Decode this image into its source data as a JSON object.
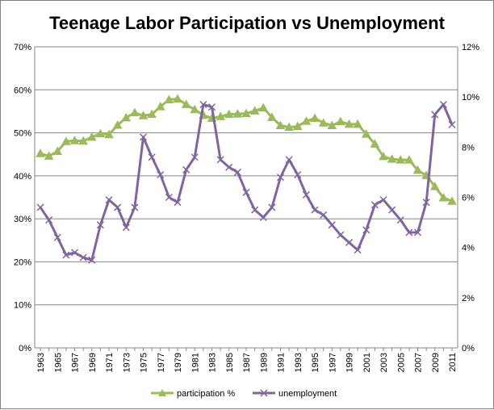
{
  "chart_data": {
    "type": "line",
    "title": "Teenage Labor Participation vs Unemployment",
    "xlabel": "",
    "ylabel": "",
    "x": [
      1963,
      1964,
      1965,
      1966,
      1967,
      1968,
      1969,
      1970,
      1971,
      1972,
      1973,
      1974,
      1975,
      1976,
      1977,
      1978,
      1979,
      1980,
      1981,
      1982,
      1983,
      1984,
      1985,
      1986,
      1987,
      1988,
      1989,
      1990,
      1991,
      1992,
      1993,
      1994,
      1995,
      1996,
      1997,
      1998,
      1999,
      2000,
      2001,
      2002,
      2003,
      2004,
      2005,
      2006,
      2007,
      2008,
      2009,
      2010,
      2011
    ],
    "x_tick_labels": [
      "1963",
      "1965",
      "1967",
      "1969",
      "1971",
      "1973",
      "1975",
      "1977",
      "1979",
      "1981",
      "1983",
      "1985",
      "1987",
      "1989",
      "1991",
      "1993",
      "1995",
      "1997",
      "1999",
      "2001",
      "2003",
      "2005",
      "2007",
      "2009",
      "2011"
    ],
    "ylim_left": [
      0,
      70
    ],
    "y_left_ticks": [
      "0%",
      "10%",
      "20%",
      "30%",
      "40%",
      "50%",
      "60%",
      "70%"
    ],
    "ylim_right": [
      0,
      12
    ],
    "y_right_ticks": [
      "0%",
      "2%",
      "4%",
      "6%",
      "8%",
      "10%",
      "12%"
    ],
    "grid": true,
    "legend_position": "bottom",
    "series": [
      {
        "name": "participation %",
        "axis": "left",
        "color": "#9bbb59",
        "marker": "triangle",
        "values": [
          45.2,
          44.6,
          45.7,
          48.0,
          48.2,
          48.1,
          49.0,
          49.8,
          49.6,
          51.8,
          53.5,
          54.7,
          54.0,
          54.3,
          56.1,
          57.7,
          57.9,
          56.6,
          55.4,
          54.1,
          53.4,
          53.8,
          54.3,
          54.4,
          54.5,
          55.1,
          55.8,
          53.6,
          51.7,
          51.3,
          51.5,
          52.7,
          53.4,
          52.3,
          51.7,
          52.6,
          52.0,
          52.0,
          49.7,
          47.4,
          44.5,
          43.9,
          43.7,
          43.7,
          41.3,
          40.1,
          37.5,
          34.9,
          34.1
        ]
      },
      {
        "name": "unemployment",
        "axis": "right",
        "color": "#8064a2",
        "marker": "x",
        "values": [
          5.6,
          5.1,
          4.4,
          3.7,
          3.8,
          3.6,
          3.5,
          4.9,
          5.9,
          5.6,
          4.8,
          5.6,
          8.4,
          7.6,
          6.9,
          6.0,
          5.8,
          7.1,
          7.6,
          9.7,
          9.6,
          7.5,
          7.2,
          7.0,
          6.2,
          5.5,
          5.2,
          5.6,
          6.8,
          7.5,
          6.9,
          6.1,
          5.5,
          5.3,
          4.9,
          4.5,
          4.2,
          3.9,
          4.7,
          5.7,
          5.9,
          5.5,
          5.1,
          4.6,
          4.6,
          5.8,
          9.3,
          9.7,
          8.9
        ]
      }
    ]
  }
}
